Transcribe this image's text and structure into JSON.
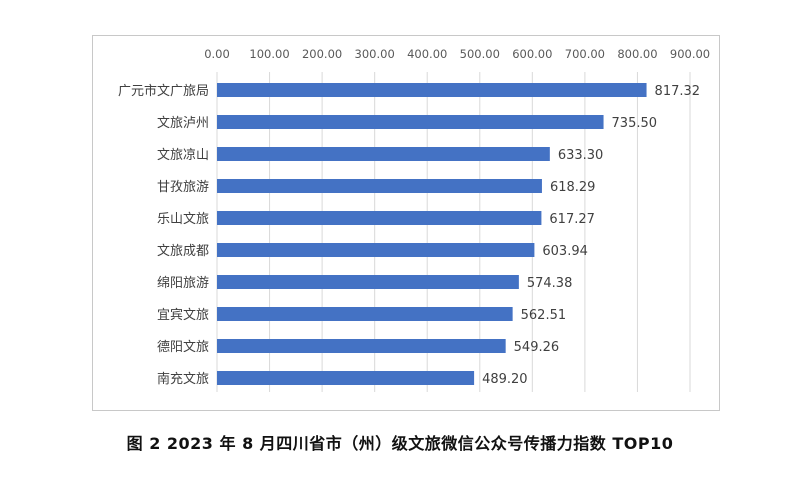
{
  "chart_data": {
    "type": "bar",
    "orientation": "horizontal",
    "categories": [
      "广元市文广旅局",
      "文旅泸州",
      "文旅凉山",
      "甘孜旅游",
      "乐山文旅",
      "文旅成都",
      "绵阳旅游",
      "宜宾文旅",
      "德阳文旅",
      "南充文旅"
    ],
    "values": [
      817.32,
      735.5,
      633.3,
      618.29,
      617.27,
      603.94,
      574.38,
      562.51,
      549.26,
      489.2
    ],
    "value_labels": [
      "817.32",
      "735.50",
      "633.30",
      "618.29",
      "617.27",
      "603.94",
      "574.38",
      "562.51",
      "549.26",
      "489.20"
    ],
    "xlim": [
      0,
      900
    ],
    "x_ticks": [
      0,
      100,
      200,
      300,
      400,
      500,
      600,
      700,
      800,
      900
    ],
    "x_tick_labels": [
      "0.00",
      "100.00",
      "200.00",
      "300.00",
      "400.00",
      "500.00",
      "600.00",
      "700.00",
      "800.00",
      "900.00"
    ],
    "x_axis_position": "top",
    "grid": true,
    "bar_color": "#4472c4",
    "title": "",
    "xlabel": "",
    "ylabel": ""
  },
  "caption": "图 2   2023 年 8 月四川省市（州）级文旅微信公众号传播力指数 TOP10"
}
